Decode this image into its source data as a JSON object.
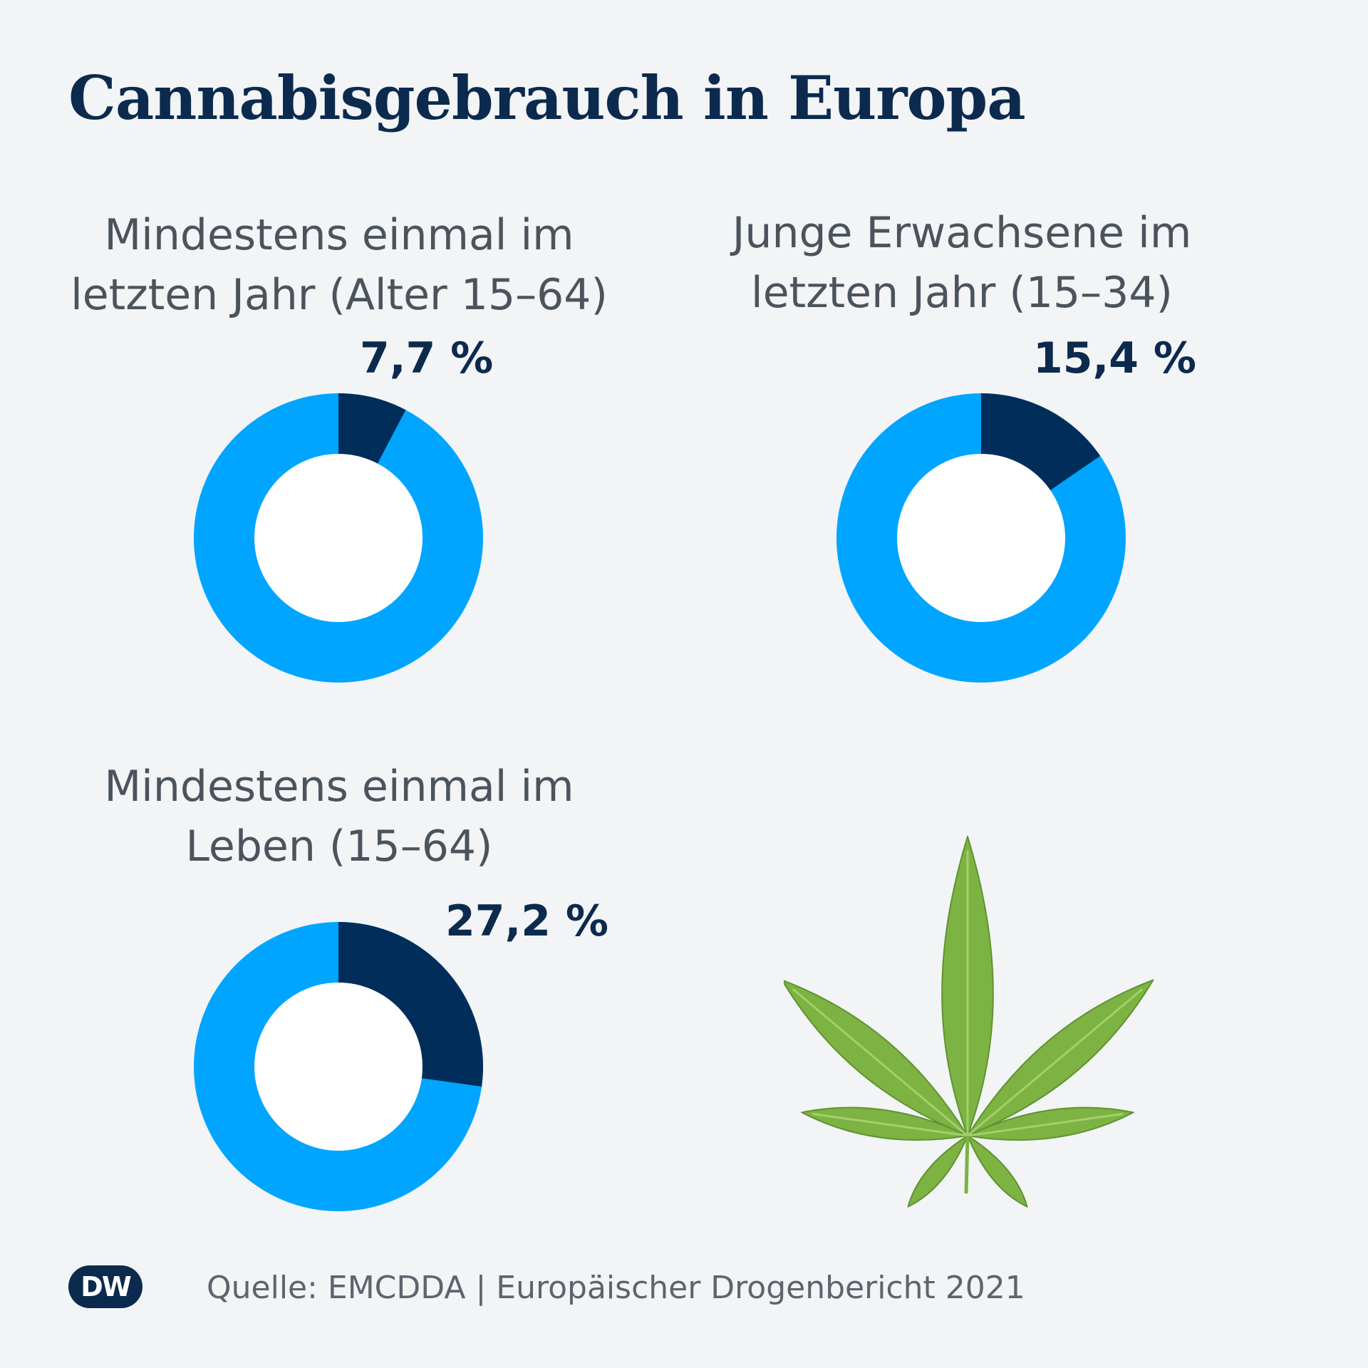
{
  "title": "Cannabisgebrauch in Europa",
  "colors": {
    "main": "#00a5ff",
    "highlight": "#002d5a",
    "hole": "#ffffff"
  },
  "chart_data": [
    {
      "type": "pie",
      "label_line1": "Mindestens einmal im",
      "label_line2": "letzten Jahr (Alter 15–64)",
      "value": 7.7,
      "value_label": "7,7 %"
    },
    {
      "type": "pie",
      "label_line1": "Junge Erwachsene im",
      "label_line2": "letzten Jahr (15–34)",
      "value": 15.4,
      "value_label": "15,4 %"
    },
    {
      "type": "pie",
      "label_line1": "Mindestens einmal im",
      "label_line2": "Leben (15–64)",
      "value": 27.2,
      "value_label": "27,2 %"
    }
  ],
  "logo": {
    "left": "D",
    "right": "W"
  },
  "source": "Quelle: EMCDDA | Europäischer Drogenbericht 2021"
}
